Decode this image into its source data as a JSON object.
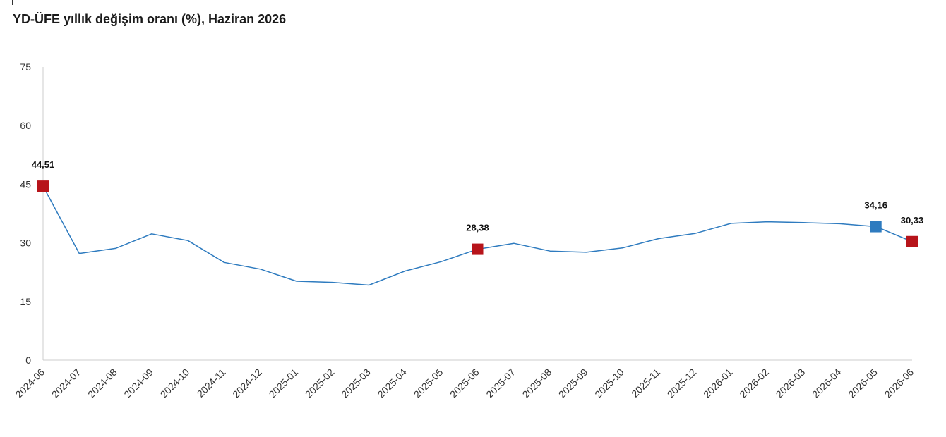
{
  "chart_data": {
    "type": "line",
    "title": "YD-ÜFE yıllık değişim oranı (%), Haziran 2026",
    "xlabel": "",
    "ylabel": "",
    "ylim": [
      0,
      75
    ],
    "yticks": [
      0,
      15,
      30,
      45,
      60,
      75
    ],
    "categories": [
      "2024-06",
      "2024-07",
      "2024-08",
      "2024-09",
      "2024-10",
      "2024-11",
      "2024-12",
      "2025-01",
      "2025-02",
      "2025-03",
      "2025-04",
      "2025-05",
      "2025-06",
      "2025-07",
      "2025-08",
      "2025-09",
      "2025-10",
      "2025-11",
      "2025-12",
      "2026-01",
      "2026-02",
      "2026-03",
      "2026-04",
      "2026-05",
      "2026-06"
    ],
    "series": [
      {
        "color": "#2e7bbf",
        "values": [
          44.51,
          27.3,
          28.6,
          32.3,
          30.6,
          25.0,
          23.3,
          20.2,
          19.9,
          19.2,
          22.8,
          25.2,
          28.38,
          29.9,
          27.9,
          27.6,
          28.7,
          31.1,
          32.4,
          35.0,
          35.4,
          35.2,
          34.9,
          34.16,
          30.33
        ]
      }
    ],
    "highlights": [
      {
        "index": 0,
        "label": "44,51",
        "color": "#b7141a"
      },
      {
        "index": 12,
        "label": "28,38",
        "color": "#b7141a"
      },
      {
        "index": 23,
        "label": "34,16",
        "color": "#2e7bbf"
      },
      {
        "index": 24,
        "label": "30,33",
        "color": "#b7141a"
      }
    ],
    "grid": false,
    "axis_color": "#cccccc"
  }
}
